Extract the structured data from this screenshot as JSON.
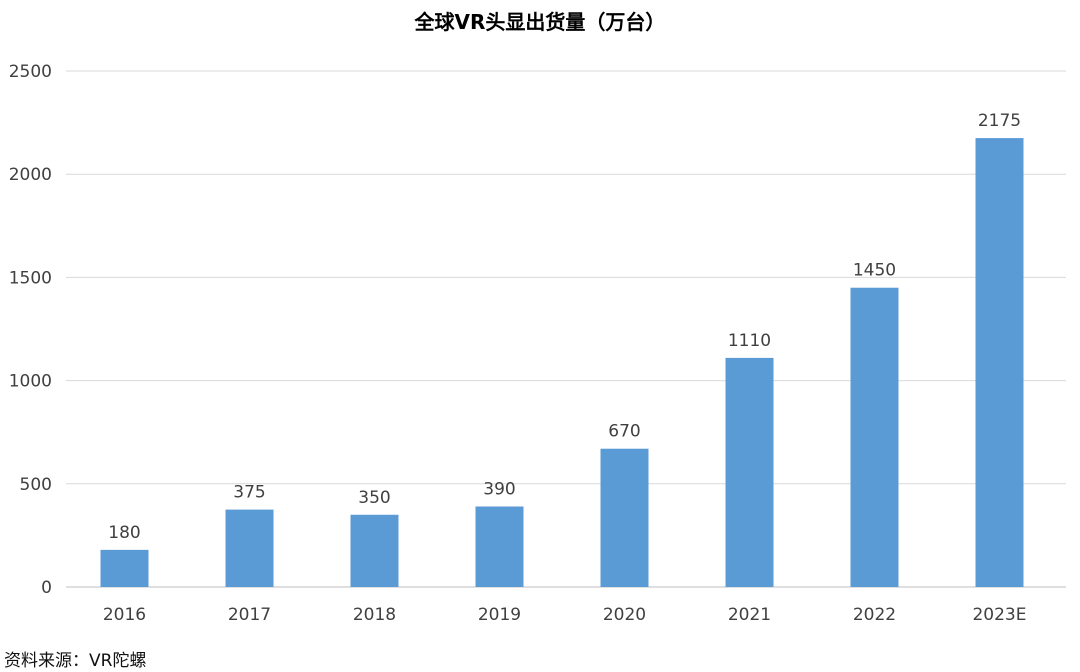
{
  "chart_data": {
    "type": "bar",
    "title": "全球VR头显出货量（万台）",
    "categories": [
      "2016",
      "2017",
      "2018",
      "2019",
      "2020",
      "2021",
      "2022",
      "2023E"
    ],
    "values": [
      180,
      375,
      350,
      390,
      670,
      1110,
      1450,
      2175
    ],
    "ylim": [
      0,
      2500
    ],
    "yticks": [
      "0",
      "500",
      "1000",
      "1500",
      "2000",
      "2500"
    ],
    "grid": true,
    "legend": "none",
    "bar_color": "#5b9bd5",
    "grid_color": "#d9d9d9",
    "label_color": "#404040"
  },
  "source": {
    "label": "资料来源",
    "sep": "：",
    "value": "VR陀螺"
  }
}
